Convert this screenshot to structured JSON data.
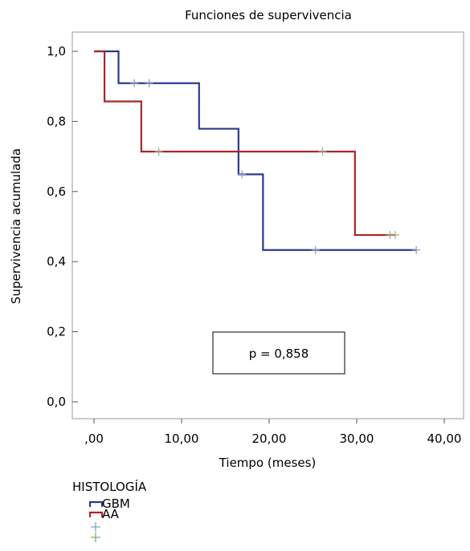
{
  "chart_data": {
    "type": "line",
    "title": "Funciones de supervivencia",
    "xlabel": "Tiempo (meses)",
    "ylabel": "Supervivencia acumulada",
    "xlim": [
      0,
      40
    ],
    "ylim": [
      0,
      1
    ],
    "x_ticks": [
      ",00",
      "10,00",
      "20,00",
      "30,00",
      "40,00"
    ],
    "x_tick_values": [
      0,
      10,
      20,
      30,
      40
    ],
    "y_ticks": [
      "0,0",
      "0,2",
      "0,4",
      "0,6",
      "0,8",
      "1,0"
    ],
    "y_tick_values": [
      0,
      0.2,
      0.4,
      0.6,
      0.8,
      1.0
    ],
    "grid": false,
    "annotation": "p = 0,858",
    "legend": {
      "title": "HISTOLOGÍA",
      "placement": "bottom-left",
      "entries": [
        {
          "label": "GBM",
          "kind": "line",
          "color": "#2b3a8c"
        },
        {
          "label": "AA",
          "kind": "line",
          "color": "#a8262a"
        },
        {
          "label": "",
          "kind": "censor",
          "color": "#8aa0c8"
        },
        {
          "label": "",
          "kind": "censor",
          "color": "#7ab06a"
        }
      ]
    },
    "series": [
      {
        "name": "GBM",
        "color": "#2b3a8c",
        "censor_color": "#8f9ab8",
        "steps": [
          [
            0,
            1.0
          ],
          [
            2.8,
            0.909
          ],
          [
            12.0,
            0.779
          ],
          [
            16.5,
            0.649
          ],
          [
            19.3,
            0.433
          ],
          [
            36.8,
            0.433
          ]
        ],
        "censored": [
          [
            4.6,
            0.909
          ],
          [
            6.3,
            0.909
          ],
          [
            16.9,
            0.649
          ],
          [
            25.3,
            0.433
          ],
          [
            36.8,
            0.433
          ]
        ]
      },
      {
        "name": "AA",
        "color": "#a8262a",
        "censor_color": "#9fb08a",
        "steps": [
          [
            0,
            1.0
          ],
          [
            1.2,
            0.857
          ],
          [
            5.4,
            0.714
          ],
          [
            29.8,
            0.476
          ],
          [
            34.4,
            0.476
          ]
        ],
        "censored": [
          [
            7.4,
            0.714
          ],
          [
            26.1,
            0.714
          ],
          [
            33.8,
            0.476
          ],
          [
            34.4,
            0.476
          ]
        ]
      }
    ]
  }
}
